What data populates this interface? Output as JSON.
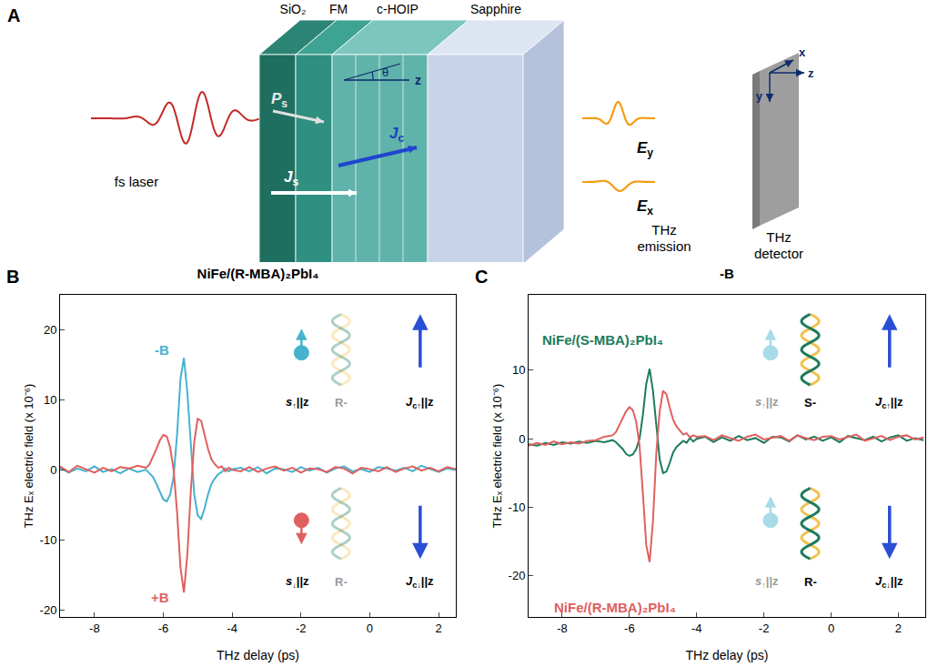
{
  "diagram": {
    "letter": "A",
    "layers": [
      "SiO₂",
      "FM",
      "c-HOIP",
      "Sapphire"
    ],
    "laser": "fs laser",
    "angle": "θ",
    "axis_label": "z",
    "polarization": {
      "main": "P",
      "sub": "s"
    },
    "charge_current": {
      "main": "J",
      "sub": "c"
    },
    "spin_current": {
      "main": "J",
      "sub": "s"
    },
    "fields": [
      {
        "main": "E",
        "sub": "y"
      },
      {
        "main": "E",
        "sub": "x"
      }
    ],
    "emission": "THz emission",
    "detector": "THz detector",
    "detector_axes": [
      "y",
      "z",
      "x"
    ]
  },
  "chart_data": [
    {
      "type": "line",
      "letter": "B",
      "title": "NiFe/(R-MBA)₂PbI₄",
      "x_label": "THz delay (ps)",
      "y_label": "THz Eₓ electric field (x 10⁻⁶)",
      "x": [
        -9,
        -8.75,
        -8.5,
        -8.25,
        -8,
        -7.75,
        -7.5,
        -7.25,
        -7,
        -6.75,
        -6.5,
        -6.4,
        -6.3,
        -6.2,
        -6.1,
        -6,
        -5.9,
        -5.8,
        -5.7,
        -5.6,
        -5.5,
        -5.4,
        -5.3,
        -5.2,
        -5.1,
        -5,
        -4.9,
        -4.8,
        -4.7,
        -4.6,
        -4.5,
        -4.4,
        -4.3,
        -4.2,
        -4.1,
        -4,
        -3.75,
        -3.5,
        -3.25,
        -3,
        -2.75,
        -2.5,
        -2.25,
        -2,
        -1.75,
        -1.5,
        -1.25,
        -1,
        -0.75,
        -0.5,
        -0.25,
        0,
        0.25,
        0.5,
        0.75,
        1,
        1.25,
        1.5,
        1.75,
        2,
        2.25,
        2.5
      ],
      "xlim": [
        -9,
        2.5
      ],
      "xticks": [
        -8,
        -6,
        -4,
        -2,
        0,
        2
      ],
      "ylim": [
        -21,
        25
      ],
      "yticks": [
        -20,
        -10,
        0,
        10,
        20
      ],
      "series": [
        {
          "name": "-B",
          "color": "#45b3cf",
          "values": [
            0.3,
            -0.4,
            0.2,
            -0.2,
            0.5,
            -0.3,
            0.1,
            -0.5,
            0.2,
            -0.3,
            0,
            -0.5,
            -1,
            -2,
            -3.2,
            -4.2,
            -4.5,
            -3.5,
            -1,
            5,
            13,
            16,
            11,
            3,
            -3.5,
            -6.5,
            -7,
            -5.5,
            -3.5,
            -2,
            -1.2,
            -0.6,
            -0.3,
            0.2,
            -0.2,
            0.1,
            0.3,
            -0.2,
            0.4,
            -0.5,
            0.2,
            0.1,
            -0.3,
            0.4,
            -0.1,
            0.3,
            -0.4,
            0.2,
            0.5,
            -0.2,
            0.1,
            -0.3,
            0.4,
            0.2,
            -0.1,
            0.3,
            -0.2,
            0.6,
            0.1,
            -0.3,
            0.2,
            0
          ]
        },
        {
          "name": "+B",
          "color": "#e0605f",
          "values": [
            0.5,
            -0.3,
            0.6,
            0.1,
            -0.4,
            0.3,
            -0.2,
            0.4,
            0.2,
            0.6,
            0.3,
            0.8,
            1.8,
            3,
            4.2,
            5,
            4.8,
            3.2,
            0,
            -6,
            -14,
            -17.5,
            -12,
            -3,
            4,
            7.3,
            7,
            5,
            3,
            1.5,
            0.8,
            0.3,
            0.5,
            -0.2,
            0.3,
            0,
            -0.2,
            0.4,
            -0.3,
            0.2,
            0.5,
            -0.1,
            0.3,
            -0.4,
            0.2,
            0.1,
            -0.3,
            0.4,
            0.2,
            -0.5,
            0.3,
            0.1,
            -0.2,
            0.4,
            -0.3,
            0.2,
            0.5,
            -0.1,
            0.3,
            -0.2,
            0.4,
            0.1
          ]
        }
      ],
      "annotations": [
        {
          "spin": {
            "main": "s",
            "sub": "↑",
            "rest": "||z"
          },
          "helix": "R-",
          "current": {
            "main": "J",
            "sub": "c↑",
            "rest": "||z"
          }
        },
        {
          "spin": {
            "main": "s",
            "sub": "↓",
            "rest": "||z"
          },
          "helix": "R-",
          "current": {
            "main": "J",
            "sub": "c↓",
            "rest": "||z"
          }
        }
      ]
    },
    {
      "type": "line",
      "letter": "C",
      "title": "-B",
      "x_label": "THz delay (ps)",
      "y_label": "THz Eₓ electric field (x 10⁻⁶)",
      "x": [
        -9,
        -8.75,
        -8.5,
        -8.25,
        -8,
        -7.75,
        -7.5,
        -7.25,
        -7,
        -6.75,
        -6.5,
        -6.4,
        -6.3,
        -6.2,
        -6.1,
        -6,
        -5.9,
        -5.8,
        -5.7,
        -5.6,
        -5.5,
        -5.4,
        -5.3,
        -5.2,
        -5.1,
        -5,
        -4.9,
        -4.8,
        -4.7,
        -4.6,
        -4.5,
        -4.4,
        -4.3,
        -4.2,
        -4.1,
        -4,
        -3.75,
        -3.5,
        -3.25,
        -3,
        -2.75,
        -2.5,
        -2.25,
        -2,
        -1.75,
        -1.5,
        -1.25,
        -1,
        -0.75,
        -0.5,
        -0.25,
        0,
        0.25,
        0.5,
        0.75,
        1,
        1.25,
        1.5,
        1.75,
        2,
        2.25,
        2.5,
        2.75
      ],
      "xlim": [
        -9,
        2.8
      ],
      "xticks": [
        -8,
        -6,
        -4,
        -2,
        0,
        2
      ],
      "ylim": [
        -26,
        21
      ],
      "yticks": [
        -20,
        -10,
        0,
        10
      ],
      "series": [
        {
          "name": "NiFe/(S-MBA)₂PbI₄",
          "color": "#1d7b5c",
          "values": [
            -0.8,
            -1,
            -0.6,
            -0.9,
            -0.5,
            -0.7,
            -0.4,
            -0.6,
            -0.3,
            -0.5,
            -0.2,
            -0.5,
            -1,
            -1.5,
            -2.2,
            -2.5,
            -2.3,
            -1.5,
            0,
            3.5,
            8,
            10.2,
            7,
            1.5,
            -3,
            -5,
            -4.8,
            -3.5,
            -2,
            -1.2,
            -0.8,
            -0.3,
            -0.6,
            0.1,
            -0.4,
            0,
            0.3,
            -0.5,
            0.2,
            -0.3,
            0.4,
            -0.2,
            0.1,
            -0.6,
            0.3,
            0.2,
            -0.4,
            0.5,
            -0.1,
            0.3,
            -0.3,
            0.2,
            -0.5,
            0.4,
            0.1,
            -0.2,
            0.3,
            -0.4,
            0.2,
            0.5,
            -0.3,
            0.1,
            -0.2
          ]
        },
        {
          "name": "NiFe/(R-MBA)₂PbI₄",
          "color": "#e0605f",
          "values": [
            -1,
            -0.6,
            -0.9,
            -0.4,
            -0.8,
            -0.5,
            -0.7,
            -0.3,
            -0.2,
            0.3,
            0.5,
            1,
            2,
            3,
            4,
            4.6,
            4.2,
            2.5,
            -1,
            -8,
            -15.5,
            -18,
            -12,
            -2,
            4,
            7,
            6.5,
            4.5,
            2.8,
            1.8,
            1.2,
            0.6,
            0.8,
            0.2,
            0.5,
            0.3,
            0.4,
            -0.2,
            0.5,
            0.1,
            -0.3,
            0.3,
            0.6,
            -0.1,
            0.2,
            0.4,
            -0.3,
            0.5,
            0.1,
            -0.2,
            0.3,
            0.4,
            -0.1,
            0.2,
            0.6,
            -0.3,
            0.1,
            0.4,
            -0.2,
            0.3,
            0.5,
            -0.1,
            0.2
          ]
        }
      ],
      "annotations": [
        {
          "spin": {
            "main": "s",
            "sub": "↑",
            "rest": "||z"
          },
          "helix": "S-",
          "current": {
            "main": "J",
            "sub": "c↑",
            "rest": "||z"
          }
        },
        {
          "spin": {
            "main": "s",
            "sub": "↑",
            "rest": "||z"
          },
          "helix": "R-",
          "current": {
            "main": "J",
            "sub": "c↓",
            "rest": "||z"
          }
        }
      ]
    }
  ]
}
